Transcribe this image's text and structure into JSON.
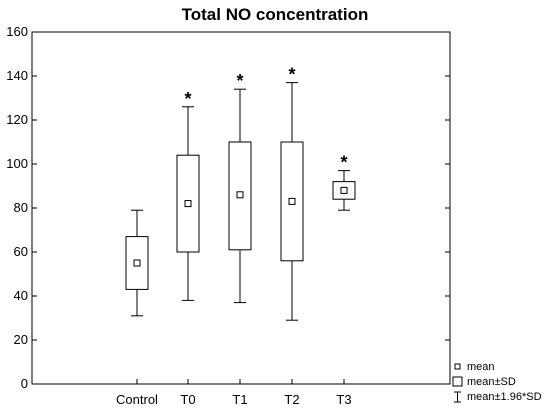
{
  "chart_data": {
    "type": "box",
    "title": "Total NO concentration",
    "xlabel": "",
    "ylabel": "",
    "ylim": [
      0,
      160
    ],
    "yticks": [
      0,
      20,
      40,
      60,
      80,
      100,
      120,
      140,
      160
    ],
    "categories": [
      "Control",
      "T0",
      "T1",
      "T2",
      "T3"
    ],
    "grid": false,
    "legend_position": "bottom-right",
    "series": [
      {
        "category": "Control",
        "mean": 55,
        "sd_low": 43,
        "sd_high": 67,
        "whisker_low": 31,
        "whisker_high": 79,
        "marker": ""
      },
      {
        "category": "T0",
        "mean": 82,
        "sd_low": 60,
        "sd_high": 104,
        "whisker_low": 38,
        "whisker_high": 126,
        "marker": "*"
      },
      {
        "category": "T1",
        "mean": 86,
        "sd_low": 61,
        "sd_high": 110,
        "whisker_low": 37,
        "whisker_high": 134,
        "marker": "*"
      },
      {
        "category": "T2",
        "mean": 83,
        "sd_low": 56,
        "sd_high": 110,
        "whisker_low": 29,
        "whisker_high": 137,
        "marker": "*"
      },
      {
        "category": "T3",
        "mean": 88,
        "sd_low": 84,
        "sd_high": 92,
        "whisker_low": 79,
        "whisker_high": 97,
        "marker": "*"
      }
    ],
    "legend": [
      {
        "symbol": "mean-marker",
        "label": "mean"
      },
      {
        "symbol": "box",
        "label": "mean±SD"
      },
      {
        "symbol": "whisker",
        "label": "mean±1.96*SD"
      }
    ]
  }
}
